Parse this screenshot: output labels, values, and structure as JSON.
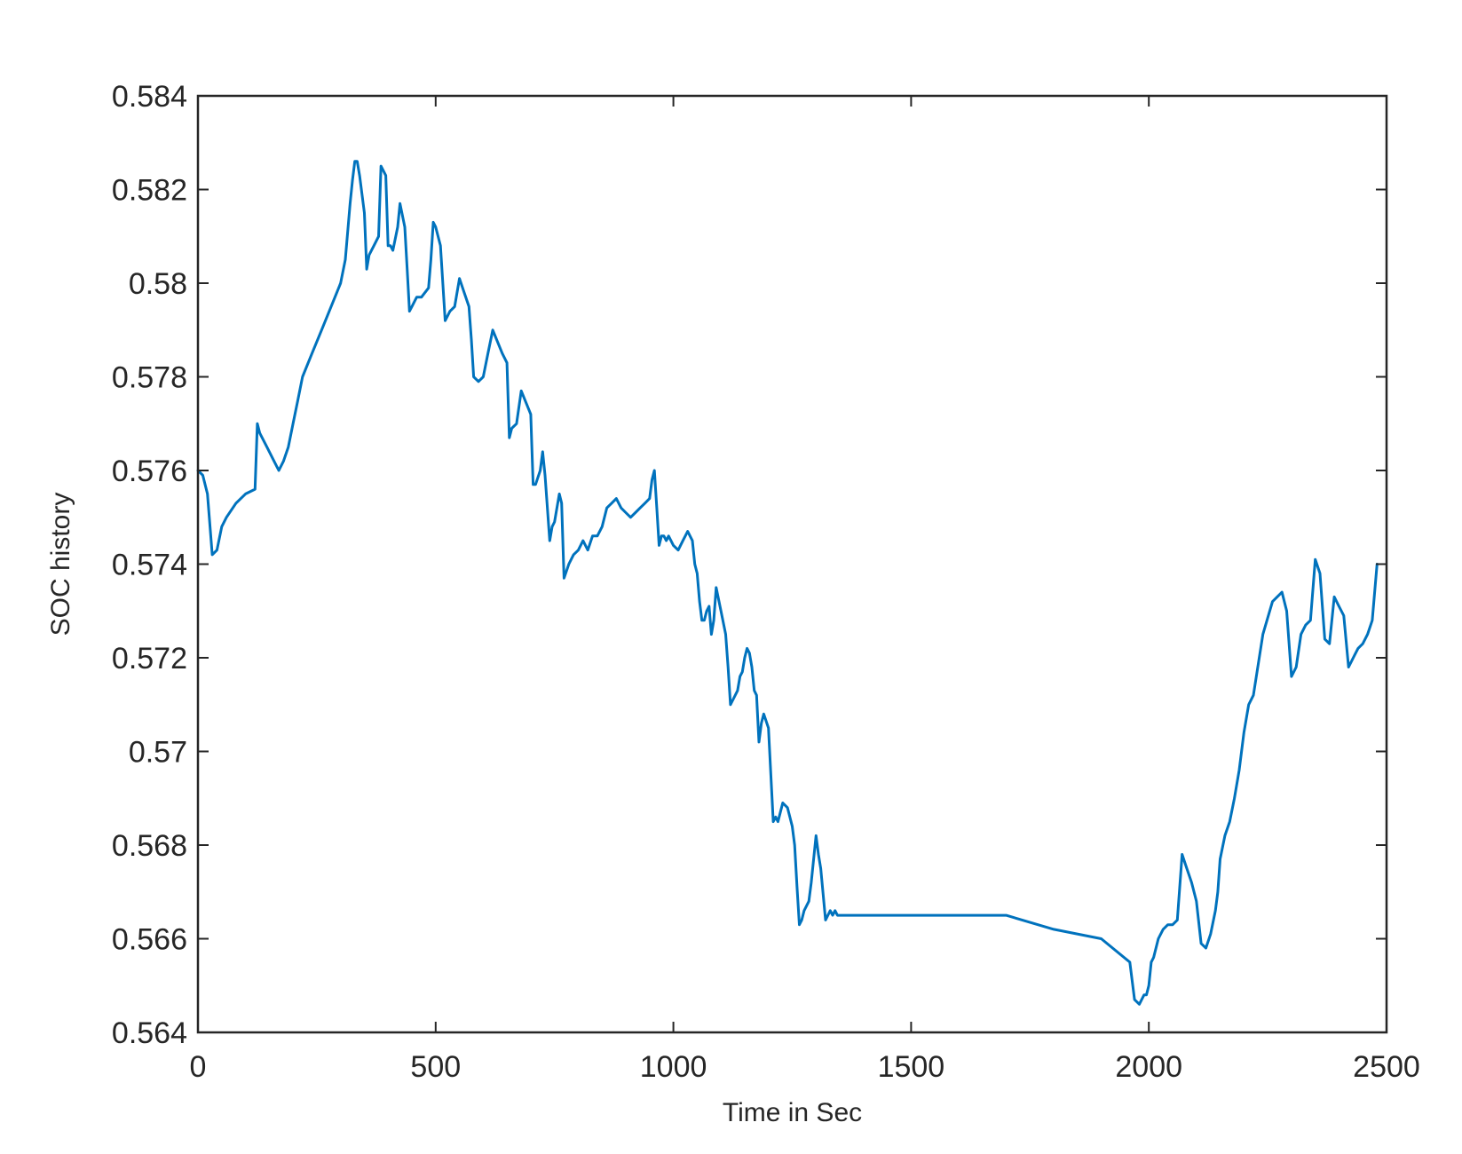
{
  "chart_data": {
    "type": "line",
    "title": "",
    "xlabel": "Time in Sec",
    "ylabel": "SOC history",
    "xlim": [
      0,
      2500
    ],
    "ylim": [
      0.564,
      0.584
    ],
    "xticks": [
      0,
      500,
      1000,
      1500,
      2000,
      2500
    ],
    "xtick_labels": [
      "0",
      "500",
      "1000",
      "1500",
      "2000",
      "2500"
    ],
    "yticks": [
      0.564,
      0.566,
      0.568,
      0.57,
      0.572,
      0.574,
      0.576,
      0.578,
      0.58,
      0.582,
      0.584
    ],
    "ytick_labels": [
      "0.564",
      "0.566",
      "0.568",
      "0.57",
      "0.572",
      "0.574",
      "0.576",
      "0.578",
      "0.58",
      "0.582",
      "0.584"
    ],
    "grid": false,
    "line_color": "#0072BD",
    "axis_color": "#262626",
    "ylabel_color": "#A0522D",
    "series": [
      {
        "x": [
          0,
          10,
          20,
          30,
          40,
          50,
          60,
          80,
          100,
          120,
          125,
          130,
          145,
          160,
          170,
          180,
          190,
          200,
          210,
          220,
          240,
          260,
          280,
          300,
          310,
          320,
          325,
          330,
          335,
          340,
          350,
          355,
          360,
          370,
          380,
          385,
          395,
          400,
          405,
          410,
          420,
          425,
          435,
          440,
          445,
          450,
          460,
          470,
          485,
          490,
          495,
          500,
          510,
          520,
          525,
          530,
          540,
          550,
          560,
          570,
          575,
          580,
          590,
          600,
          610,
          620,
          640,
          650,
          655,
          660,
          670,
          680,
          700,
          705,
          710,
          720,
          725,
          730,
          740,
          745,
          750,
          760,
          765,
          770,
          780,
          790,
          800,
          810,
          820,
          830,
          840,
          850,
          860,
          870,
          880,
          890,
          900,
          910,
          920,
          930,
          940,
          950,
          955,
          960,
          965,
          970,
          975,
          980,
          985,
          990,
          1000,
          1010,
          1020,
          1030,
          1040,
          1045,
          1050,
          1055,
          1060,
          1065,
          1070,
          1075,
          1080,
          1085,
          1090,
          1100,
          1110,
          1115,
          1120,
          1125,
          1135,
          1140,
          1145,
          1150,
          1155,
          1160,
          1165,
          1170,
          1175,
          1180,
          1185,
          1190,
          1200,
          1205,
          1210,
          1215,
          1220,
          1230,
          1240,
          1245,
          1250,
          1255,
          1260,
          1265,
          1270,
          1275,
          1285,
          1290,
          1300,
          1305,
          1310,
          1320,
          1330,
          1335,
          1340,
          1345,
          1350,
          1355,
          1360,
          1370,
          1380,
          1400,
          1500,
          1600,
          1700,
          1800,
          1900,
          1960,
          1970,
          1980,
          1990,
          1995,
          2000,
          2005,
          2010,
          2020,
          2030,
          2040,
          2050,
          2060,
          2070,
          2080,
          2090,
          2100,
          2110,
          2120,
          2130,
          2140,
          2145,
          2150,
          2160,
          2170,
          2180,
          2190,
          2200,
          2210,
          2220,
          2240,
          2260,
          2280,
          2290,
          2300,
          2310,
          2320,
          2330,
          2340,
          2350,
          2360,
          2370,
          2380,
          2390,
          2400,
          2410,
          2420,
          2430,
          2440,
          2450,
          2460,
          2470,
          2480
        ],
        "y": [
          0.576,
          0.5759,
          0.5755,
          0.5742,
          0.5743,
          0.5748,
          0.575,
          0.5753,
          0.5755,
          0.5756,
          0.577,
          0.5768,
          0.5765,
          0.5762,
          0.576,
          0.5762,
          0.5765,
          0.577,
          0.5775,
          0.578,
          0.5785,
          0.579,
          0.5795,
          0.58,
          0.5805,
          0.5817,
          0.5822,
          0.5826,
          0.5826,
          0.5823,
          0.5815,
          0.5803,
          0.5806,
          0.5808,
          0.581,
          0.5825,
          0.5823,
          0.5808,
          0.5808,
          0.5807,
          0.5812,
          0.5817,
          0.5812,
          0.5803,
          0.5794,
          0.5795,
          0.5797,
          0.5797,
          0.5799,
          0.5805,
          0.5813,
          0.5812,
          0.5808,
          0.5792,
          0.5793,
          0.5794,
          0.5795,
          0.5801,
          0.5798,
          0.5795,
          0.5788,
          0.578,
          0.5779,
          0.578,
          0.5785,
          0.579,
          0.5785,
          0.5783,
          0.5767,
          0.5769,
          0.577,
          0.5777,
          0.5772,
          0.5757,
          0.5757,
          0.576,
          0.5764,
          0.5759,
          0.5745,
          0.5748,
          0.5749,
          0.5755,
          0.5753,
          0.5737,
          0.574,
          0.5742,
          0.5743,
          0.5745,
          0.5743,
          0.5746,
          0.5746,
          0.5748,
          0.5752,
          0.5753,
          0.5754,
          0.5752,
          0.5751,
          0.575,
          0.5751,
          0.5752,
          0.5753,
          0.5754,
          0.5758,
          0.576,
          0.5752,
          0.5744,
          0.5746,
          0.5746,
          0.5745,
          0.5746,
          0.5744,
          0.5743,
          0.5745,
          0.5747,
          0.5745,
          0.574,
          0.5738,
          0.5732,
          0.5728,
          0.5728,
          0.573,
          0.5731,
          0.5725,
          0.5728,
          0.5735,
          0.573,
          0.5725,
          0.5718,
          0.571,
          0.5711,
          0.5713,
          0.5716,
          0.5717,
          0.572,
          0.5722,
          0.5721,
          0.5718,
          0.5713,
          0.5712,
          0.5702,
          0.5706,
          0.5708,
          0.5705,
          0.5695,
          0.5685,
          0.5686,
          0.5685,
          0.5689,
          0.5688,
          0.5686,
          0.5684,
          0.568,
          0.5671,
          0.5663,
          0.5664,
          0.5666,
          0.5668,
          0.5672,
          0.5682,
          0.5678,
          0.5675,
          0.5664,
          0.5666,
          0.5665,
          0.5666,
          0.5665,
          0.5665,
          0.5665,
          0.5665,
          0.5665,
          0.5665,
          0.5665,
          0.5665,
          0.5665,
          0.5665,
          0.5662,
          0.566,
          0.5655,
          0.5647,
          0.5646,
          0.5648,
          0.5648,
          0.565,
          0.5655,
          0.5656,
          0.566,
          0.5662,
          0.5663,
          0.5663,
          0.5664,
          0.5678,
          0.5675,
          0.5672,
          0.5668,
          0.5659,
          0.5658,
          0.5661,
          0.5666,
          0.567,
          0.5677,
          0.5682,
          0.5685,
          0.569,
          0.5696,
          0.5704,
          0.571,
          0.5712,
          0.5725,
          0.5732,
          0.5734,
          0.573,
          0.5716,
          0.5718,
          0.5725,
          0.5727,
          0.5728,
          0.5741,
          0.5738,
          0.5724,
          0.5723,
          0.5733,
          0.5731,
          0.5729,
          0.5718,
          0.572,
          0.5722,
          0.5723,
          0.5725,
          0.5728,
          0.574
        ]
      }
    ]
  }
}
